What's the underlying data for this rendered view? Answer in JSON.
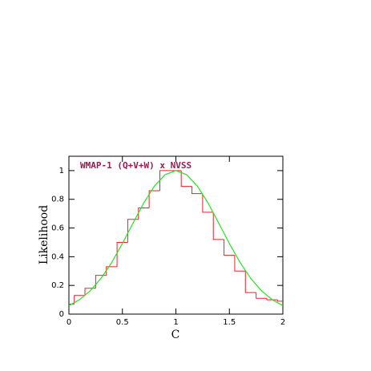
{
  "chart_data": {
    "type": "histogram-curve",
    "title": "WMAP-1 (Q+V+W) x NVSS",
    "xlabel": "C",
    "ylabel": "Likelihood",
    "bins": [
      -0.05,
      0.05,
      0.15,
      0.25,
      0.35,
      0.45,
      0.55,
      0.65,
      0.75,
      0.85,
      0.95,
      1.05,
      1.15,
      1.25,
      1.35,
      1.45,
      1.55,
      1.65,
      1.75,
      1.85,
      1.95,
      2.05
    ],
    "values": [
      0.07,
      0.13,
      0.18,
      0.27,
      0.33,
      0.5,
      0.66,
      0.74,
      0.86,
      1.0,
      1.0,
      0.89,
      0.84,
      0.71,
      0.52,
      0.41,
      0.3,
      0.15,
      0.11,
      0.1,
      0.09
    ],
    "color": "#e8212b",
    "curve": {
      "color": "#22e41c",
      "x": [
        0,
        0.1,
        0.2,
        0.3,
        0.4,
        0.5,
        0.6,
        0.7,
        0.8,
        0.9,
        1.0,
        1.1,
        1.2,
        1.3,
        1.4,
        1.5,
        1.6,
        1.7,
        1.8,
        1.9,
        2.0
      ],
      "values": [
        0.059,
        0.101,
        0.163,
        0.249,
        0.36,
        0.492,
        0.635,
        0.775,
        0.893,
        0.972,
        1,
        0.972,
        0.893,
        0.775,
        0.635,
        0.492,
        0.36,
        0.249,
        0.163,
        0.101,
        0.059
      ]
    },
    "xlim": [
      0,
      2
    ],
    "ylim": [
      0,
      1.1
    ],
    "xticks": [
      0,
      0.5,
      1,
      1.5,
      2
    ],
    "yticks": [
      0,
      0.2,
      0.4,
      0.6,
      0.8,
      1
    ]
  }
}
